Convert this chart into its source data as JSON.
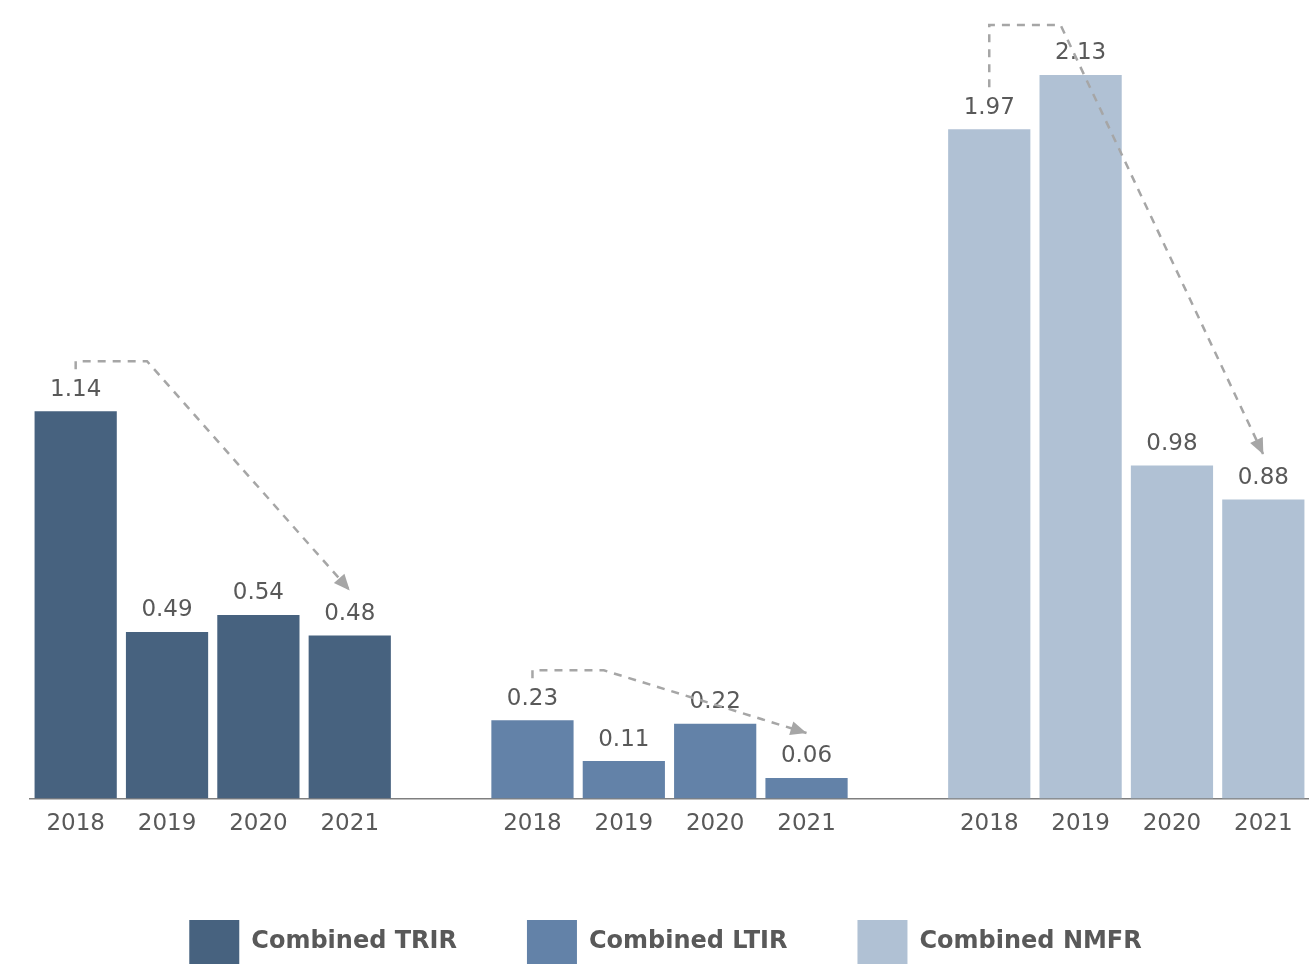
{
  "chart_data": {
    "type": "bar",
    "categories": [
      "2018",
      "2019",
      "2020",
      "2021",
      null,
      "2018",
      "2019",
      "2020",
      "2021",
      null,
      "2018",
      "2019",
      "2020",
      "2021"
    ],
    "series": [
      {
        "name": "Combined TRIR",
        "color": "#47627f",
        "values": [
          1.14,
          0.49,
          0.54,
          0.48,
          null,
          null,
          null,
          null,
          null,
          null,
          null,
          null,
          null,
          null
        ]
      },
      {
        "name": "Combined LTIR",
        "color": "#6382a8",
        "values": [
          null,
          null,
          null,
          null,
          null,
          0.23,
          0.11,
          0.22,
          0.06,
          null,
          null,
          null,
          null,
          null
        ]
      },
      {
        "name": "Combined NMFR",
        "color": "#b0c1d4",
        "values": [
          null,
          null,
          null,
          null,
          null,
          null,
          null,
          null,
          null,
          null,
          1.97,
          2.13,
          0.98,
          0.88
        ]
      }
    ],
    "relative": false,
    "data_labels": true,
    "legend": "bottom",
    "grid": false
  }
}
